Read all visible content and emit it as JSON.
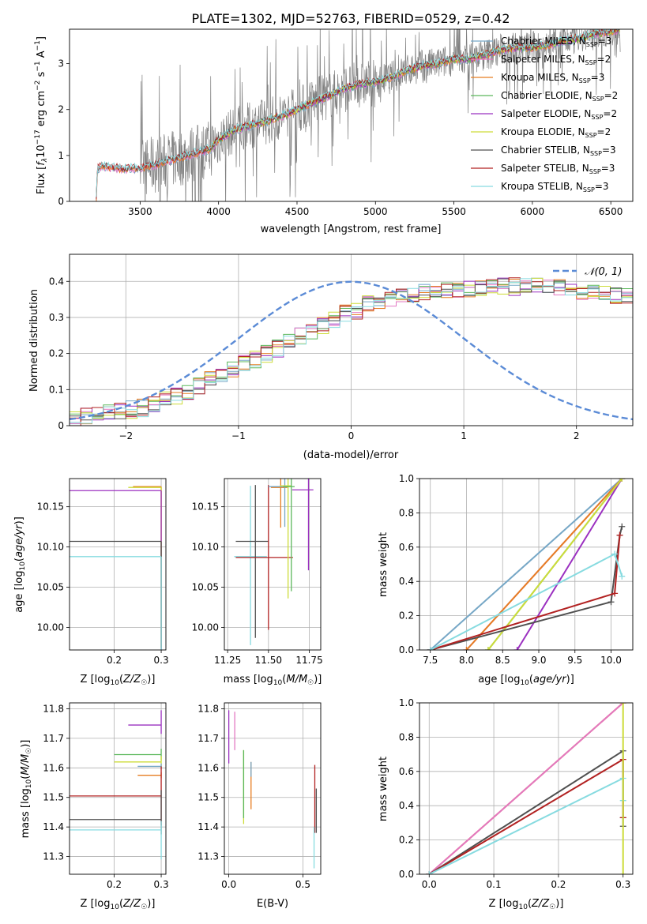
{
  "colors": {
    "data": "#808080",
    "chabrier_miles": "#76a7c6",
    "salpeter_miles": "#e377c2",
    "kroupa_miles": "#e67e22",
    "chabrier_elodie": "#5cb85c",
    "salpeter_elodie": "#9b30c0",
    "kroupa_elodie": "#cddc39",
    "chabrier_stelib": "#505050",
    "salpeter_stelib": "#b22222",
    "kroupa_stelib": "#87dbe0",
    "normal": "#5b8bd6"
  },
  "chart_data": [
    {
      "id": "spectrum",
      "type": "line",
      "title": "PLATE=1302, MJD=52763, FIBERID=0529, z=0.42",
      "xlabel": "wavelength [Angstrom, rest frame]",
      "ylabel": "Flux [f_λ 10^-17 erg cm^-2 s^-1 A^-1]",
      "xlim": [
        3050,
        6640
      ],
      "ylim": [
        0,
        3.75
      ],
      "xticks": [
        3500,
        4000,
        4500,
        5000,
        5500,
        6000,
        6500
      ],
      "yticks": [
        0,
        1,
        2,
        3
      ],
      "grid": false,
      "legend_position": "top-right",
      "legend": [
        {
          "label": "Chabrier MILES, N",
          "sub": "SSP",
          "tail": "=3",
          "color": "chabrier_miles"
        },
        {
          "label": "Salpeter MILES, N",
          "sub": "SSP",
          "tail": "=2",
          "color": "salpeter_miles"
        },
        {
          "label": "Kroupa MILES, N",
          "sub": "SSP",
          "tail": "=3",
          "color": "kroupa_miles"
        },
        {
          "label": "Chabrier ELODIE, N",
          "sub": "SSP",
          "tail": "=2",
          "color": "chabrier_elodie"
        },
        {
          "label": "Salpeter ELODIE, N",
          "sub": "SSP",
          "tail": "=2",
          "color": "salpeter_elodie"
        },
        {
          "label": "Kroupa ELODIE, N",
          "sub": "SSP",
          "tail": "=2",
          "color": "kroupa_elodie"
        },
        {
          "label": "Chabrier STELIB, N",
          "sub": "SSP",
          "tail": "=3",
          "color": "chabrier_stelib"
        },
        {
          "label": "Salpeter STELIB, N",
          "sub": "SSP",
          "tail": "=3",
          "color": "salpeter_stelib"
        },
        {
          "label": "Kroupa STELIB, N",
          "sub": "SSP",
          "tail": "=3",
          "color": "kroupa_stelib"
        }
      ],
      "continuum": [
        [
          3220,
          0
        ],
        [
          3225,
          0.55
        ],
        [
          3232,
          0.72
        ],
        [
          3260,
          0.78
        ],
        [
          3300,
          0.74
        ],
        [
          3400,
          0.71
        ],
        [
          3500,
          0.72
        ],
        [
          3600,
          0.8
        ],
        [
          3700,
          0.9
        ],
        [
          3800,
          1.0
        ],
        [
          3900,
          1.1
        ],
        [
          3950,
          1.15
        ],
        [
          4000,
          1.35
        ],
        [
          4100,
          1.55
        ],
        [
          4200,
          1.65
        ],
        [
          4300,
          1.75
        ],
        [
          4400,
          1.85
        ],
        [
          4500,
          2.0
        ],
        [
          4600,
          2.15
        ],
        [
          4700,
          2.3
        ],
        [
          4800,
          2.45
        ],
        [
          4900,
          2.55
        ],
        [
          5000,
          2.6
        ],
        [
          5100,
          2.7
        ],
        [
          5200,
          2.85
        ],
        [
          5300,
          2.95
        ],
        [
          5400,
          3.0
        ],
        [
          5500,
          3.1
        ],
        [
          5600,
          3.1
        ],
        [
          5700,
          3.2
        ],
        [
          5800,
          3.3
        ],
        [
          5900,
          3.35
        ],
        [
          6000,
          3.35
        ],
        [
          6100,
          3.4
        ],
        [
          6200,
          3.5
        ],
        [
          6300,
          3.55
        ],
        [
          6400,
          3.65
        ],
        [
          6500,
          3.7
        ],
        [
          6560,
          3.75
        ]
      ]
    },
    {
      "id": "residuals",
      "type": "step",
      "xlabel": "(data-model)/error",
      "ylabel": "Normed distribution",
      "xlim": [
        -2.5,
        2.5
      ],
      "ylim": [
        0,
        0.475
      ],
      "xticks": [
        -2,
        -1,
        0,
        1,
        2
      ],
      "yticks": [
        0.0,
        0.1,
        0.2,
        0.3,
        0.4
      ],
      "grid": true,
      "legend_position": "top-right",
      "normal_label": "𝒩(0, 1)",
      "bin_width": 0.1,
      "bin_start": -2.5,
      "base_heights": [
        0.02,
        0.025,
        0.03,
        0.035,
        0.04,
        0.045,
        0.05,
        0.06,
        0.07,
        0.08,
        0.095,
        0.11,
        0.125,
        0.14,
        0.155,
        0.17,
        0.185,
        0.2,
        0.215,
        0.23,
        0.25,
        0.265,
        0.28,
        0.295,
        0.31,
        0.32,
        0.335,
        0.345,
        0.355,
        0.36,
        0.365,
        0.37,
        0.375,
        0.38,
        0.38,
        0.382,
        0.384,
        0.385,
        0.385,
        0.385,
        0.385,
        0.384,
        0.382,
        0.38,
        0.375,
        0.37,
        0.37,
        0.365,
        0.36,
        0.355,
        0.34,
        0.33,
        0.32,
        0.305,
        0.29,
        0.275,
        0.26,
        0.245,
        0.23,
        0.215,
        0.2,
        0.19,
        0.175,
        0.165,
        0.15,
        0.14,
        0.13,
        0.12,
        0.11,
        0.1,
        0.09,
        0.085,
        0.08,
        0.07,
        0.065,
        0.06,
        0.055,
        0.05,
        0.045,
        0.04
      ]
    },
    {
      "id": "age_vs_Z",
      "type": "errorbar",
      "xlabel": "Z [log10(Z/Z☉)]",
      "ylabel": "age  [log10(age/yr)]",
      "xlim": [
        0.105,
        0.31
      ],
      "ylim": [
        9.972,
        10.185
      ],
      "xticks": [
        0.2,
        0.3
      ],
      "yticks": [
        10.0,
        10.05,
        10.1,
        10.15
      ],
      "grid": true,
      "points": [
        {
          "x": 0.3,
          "y": 10.175,
          "xerr": [
            0.06,
            0
          ],
          "yerr": [
            0.2,
            0
          ],
          "color": "kroupa_miles"
        },
        {
          "x": 0.3,
          "y": 10.174,
          "xerr": [
            0.07,
            0
          ],
          "yerr": [
            0.2,
            0
          ],
          "color": "kroupa_elodie"
        },
        {
          "x": 0.3,
          "y": 10.17,
          "xerr": [
            0.2,
            0
          ],
          "yerr": [
            0.2,
            0
          ],
          "color": "salpeter_elodie"
        },
        {
          "x": 0.3,
          "y": 10.107,
          "xerr": [
            0.2,
            0
          ],
          "yerr": [
            0.2,
            0
          ],
          "color": "chabrier_stelib"
        },
        {
          "x": 0.3,
          "y": 10.088,
          "xerr": [
            0.2,
            0
          ],
          "yerr": [
            0.2,
            0
          ],
          "color": "kroupa_stelib"
        }
      ]
    },
    {
      "id": "age_vs_mass",
      "type": "errorbar",
      "xlabel": "mass [log10(M/M☉)]",
      "ylabel": "",
      "xlim": [
        11.23,
        11.82
      ],
      "ylim": [
        9.972,
        10.185
      ],
      "xticks": [
        11.25,
        11.5,
        11.75
      ],
      "yticks": [
        10.0,
        10.05,
        10.1,
        10.15
      ],
      "grid": true,
      "points": [
        {
          "x": 11.39,
          "y": 10.088,
          "xerr": [
            0.1,
            0.1
          ],
          "yerr": [
            0.11,
            0.088
          ],
          "color": "kroupa_stelib"
        },
        {
          "x": 11.42,
          "y": 10.107,
          "xerr": [
            0.12,
            0.08
          ],
          "yerr": [
            0.12,
            0.07
          ],
          "color": "chabrier_stelib"
        },
        {
          "x": 11.5,
          "y": 10.087,
          "xerr": [
            0.2,
            0.15
          ],
          "yerr": [
            0.09,
            0.09
          ],
          "color": "salpeter_stelib"
        },
        {
          "x": 11.575,
          "y": 10.174,
          "xerr": [
            0.06,
            0.04
          ],
          "yerr": [
            0.05,
            0.04
          ],
          "color": "kroupa_miles"
        },
        {
          "x": 11.6,
          "y": 10.175,
          "xerr": [
            0.1,
            0.02
          ],
          "yerr": [
            0.05,
            0.03
          ],
          "color": "chabrier_miles"
        },
        {
          "x": 11.62,
          "y": 10.176,
          "xerr": [
            0.05,
            0.02
          ],
          "yerr": [
            0.14,
            0.02
          ],
          "color": "kroupa_elodie"
        },
        {
          "x": 11.64,
          "y": 10.175,
          "xerr": [
            0.05,
            0.02
          ],
          "yerr": [
            0.13,
            0.02
          ],
          "color": "chabrier_elodie"
        },
        {
          "x": 11.745,
          "y": 10.171,
          "xerr": [
            0.1,
            0.03
          ],
          "yerr": [
            0.1,
            0.03
          ],
          "color": "salpeter_elodie"
        }
      ]
    },
    {
      "id": "weight_vs_age",
      "type": "line",
      "xlabel": "age  [log10(age/yr)]",
      "ylabel": "mass weight",
      "xlim": [
        7.35,
        10.3
      ],
      "ylim": [
        0,
        1.0
      ],
      "xticks": [
        7.5,
        8.0,
        8.5,
        9.0,
        9.5,
        10.0
      ],
      "yticks": [
        0.0,
        0.2,
        0.4,
        0.6,
        0.8,
        1.0
      ],
      "grid": true,
      "series": [
        {
          "color": "chabrier_miles",
          "x": [
            7.5,
            10.15
          ],
          "y": [
            0,
            1.0
          ]
        },
        {
          "color": "salpeter_miles",
          "x": [
            8.0,
            10.15
          ],
          "y": [
            0,
            1.0
          ]
        },
        {
          "color": "kroupa_miles",
          "x": [
            8.0,
            10.15
          ],
          "y": [
            0,
            1.0
          ]
        },
        {
          "color": "chabrier_elodie",
          "x": [
            8.3,
            10.15
          ],
          "y": [
            0,
            1.0
          ]
        },
        {
          "color": "salpeter_elodie",
          "x": [
            8.7,
            10.15
          ],
          "y": [
            0,
            1.0
          ]
        },
        {
          "color": "kroupa_elodie",
          "x": [
            8.3,
            10.15
          ],
          "y": [
            0,
            1.0
          ]
        },
        {
          "color": "chabrier_stelib",
          "x": [
            7.5,
            10.0,
            10.12,
            10.15
          ],
          "y": [
            0,
            0.28,
            0.67,
            0.72
          ]
        },
        {
          "color": "salpeter_stelib",
          "x": [
            7.5,
            10.05,
            10.12
          ],
          "y": [
            0,
            0.33,
            0.67
          ]
        },
        {
          "color": "kroupa_stelib",
          "x": [
            7.5,
            10.05,
            10.15
          ],
          "y": [
            0,
            0.56,
            0.43
          ]
        }
      ]
    },
    {
      "id": "mass_vs_Z",
      "type": "errorbar",
      "xlabel": "Z [log10(Z/Z☉)]",
      "ylabel": "mass [log10(M/M☉)]",
      "xlim": [
        0.105,
        0.31
      ],
      "ylim": [
        11.24,
        11.82
      ],
      "xticks": [
        0.2,
        0.3
      ],
      "yticks": [
        11.3,
        11.4,
        11.5,
        11.6,
        11.7,
        11.8
      ],
      "grid": true,
      "points": [
        {
          "x": 0.3,
          "y": 11.745,
          "xerr": [
            0.07,
            0
          ],
          "yerr": [
            0.03,
            0.05
          ],
          "color": "salpeter_elodie"
        },
        {
          "x": 0.3,
          "y": 11.645,
          "xerr": [
            0.1,
            0
          ],
          "yerr": [
            0.02,
            0.02
          ],
          "color": "chabrier_elodie"
        },
        {
          "x": 0.3,
          "y": 11.62,
          "xerr": [
            0.1,
            0
          ],
          "yerr": [
            0.02,
            0.02
          ],
          "color": "kroupa_elodie"
        },
        {
          "x": 0.3,
          "y": 11.605,
          "xerr": [
            0.05,
            0
          ],
          "yerr": [
            0.01,
            0.01
          ],
          "color": "chabrier_miles"
        },
        {
          "x": 0.3,
          "y": 11.575,
          "xerr": [
            0.05,
            0
          ],
          "yerr": [
            0.01,
            0.01
          ],
          "color": "kroupa_miles"
        },
        {
          "x": 0.3,
          "y": 11.505,
          "xerr": [
            0.2,
            0
          ],
          "yerr": [
            0.1,
            0.1
          ],
          "color": "salpeter_stelib"
        },
        {
          "x": 0.3,
          "y": 11.425,
          "xerr": [
            0.2,
            0
          ],
          "yerr": [
            0.05,
            0.1
          ],
          "color": "chabrier_stelib"
        },
        {
          "x": 0.3,
          "y": 11.39,
          "xerr": [
            0.2,
            0
          ],
          "yerr": [
            0.1,
            0.03
          ],
          "color": "kroupa_stelib"
        }
      ]
    },
    {
      "id": "mass_vs_ebv",
      "type": "errorbar",
      "xlabel": "E(B-V)",
      "ylabel": "",
      "xlim": [
        -0.03,
        0.62
      ],
      "ylim": [
        11.24,
        11.82
      ],
      "xticks": [
        0.0,
        0.5
      ],
      "yticks": [
        11.3,
        11.4,
        11.5,
        11.6,
        11.7,
        11.8
      ],
      "grid": true,
      "points": [
        {
          "x": 0.0,
          "y": 11.745,
          "xerr": [
            0,
            0
          ],
          "yerr": [
            0.13,
            0.05
          ],
          "color": "salpeter_elodie"
        },
        {
          "x": 0.04,
          "y": 11.74,
          "xerr": [
            0,
            0
          ],
          "yerr": [
            0.08,
            0.05
          ],
          "color": "salpeter_miles"
        },
        {
          "x": 0.1,
          "y": 11.55,
          "xerr": [
            0,
            0
          ],
          "yerr": [
            0.14,
            0.11
          ],
          "color": "kroupa_elodie"
        },
        {
          "x": 0.1,
          "y": 11.55,
          "xerr": [
            0,
            0
          ],
          "yerr": [
            0.12,
            0.11
          ],
          "color": "chabrier_elodie"
        },
        {
          "x": 0.15,
          "y": 11.54,
          "xerr": [
            0,
            0
          ],
          "yerr": [
            0.08,
            0.08
          ],
          "color": "kroupa_miles"
        },
        {
          "x": 0.15,
          "y": 11.6,
          "xerr": [
            0,
            0
          ],
          "yerr": [
            0.03,
            0.02
          ],
          "color": "chabrier_miles"
        },
        {
          "x": 0.58,
          "y": 11.5,
          "xerr": [
            0,
            0
          ],
          "yerr": [
            0.12,
            0.11
          ],
          "color": "salpeter_stelib"
        },
        {
          "x": 0.59,
          "y": 11.44,
          "xerr": [
            0,
            0
          ],
          "yerr": [
            0.06,
            0.09
          ],
          "color": "chabrier_stelib"
        },
        {
          "x": 0.575,
          "y": 11.35,
          "xerr": [
            0,
            0
          ],
          "yerr": [
            0.09,
            0.05
          ],
          "color": "kroupa_stelib"
        }
      ]
    },
    {
      "id": "weight_vs_Z",
      "type": "line",
      "xlabel": "Z [log10(Z/Z☉)]",
      "ylabel": "mass weight",
      "xlim": [
        -0.015,
        0.315
      ],
      "ylim": [
        0,
        1.0
      ],
      "xticks": [
        0.0,
        0.1,
        0.2,
        0.3
      ],
      "yticks": [
        0.0,
        0.2,
        0.4,
        0.6,
        0.8,
        1.0
      ],
      "grid": true,
      "series": [
        {
          "color": "kroupa_miles",
          "x": [
            0,
            0.3
          ],
          "y": [
            0,
            1.0
          ]
        },
        {
          "color": "salpeter_miles",
          "x": [
            0,
            0.3
          ],
          "y": [
            0,
            1.0
          ]
        },
        {
          "color": "chabrier_stelib",
          "x": [
            0,
            0.3,
            0.3,
            0.3
          ],
          "y": [
            0,
            0.72,
            0.33,
            0.28
          ]
        },
        {
          "color": "salpeter_stelib",
          "x": [
            0,
            0.3,
            0.3
          ],
          "y": [
            0,
            0.67,
            0.33
          ]
        },
        {
          "color": "kroupa_stelib",
          "x": [
            0,
            0.3,
            0.3
          ],
          "y": [
            0,
            0.56,
            0.43
          ]
        },
        {
          "color": "kroupa_elodie",
          "x": [
            0.3,
            0.3
          ],
          "y": [
            0,
            1.0
          ]
        }
      ]
    }
  ]
}
